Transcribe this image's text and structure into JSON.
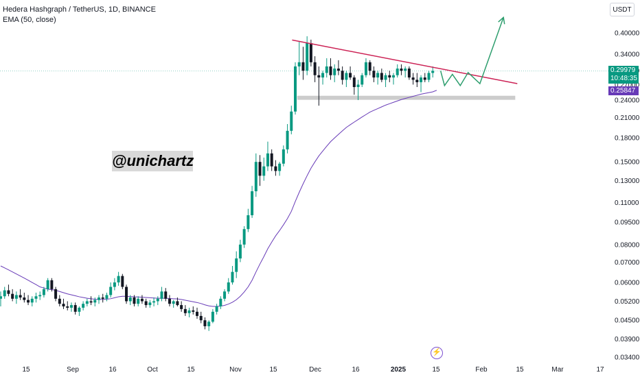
{
  "header": {
    "symbol_line": "Hedera Hashgraph / TetherUS, 1D, BINANCE",
    "indicator_line": "EMA (50, close)"
  },
  "currency": "USDT",
  "watermark": "@unichartz",
  "price_tag": {
    "price": "0.29979",
    "countdown": "10:48:35"
  },
  "ema_tag": "0.25847",
  "colors": {
    "up": "#089981",
    "down": "#131722",
    "ema": "#673ab7",
    "trendline": "#cc2255",
    "arrow": "#2e9e6e",
    "support_zone": "#cccccc"
  },
  "chart_data": {
    "type": "candlestick",
    "scale": "log",
    "y_ticks": [
      "0.40000",
      "0.34000",
      "0.30000",
      "0.27000",
      "0.24000",
      "0.21000",
      "0.18000",
      "0.15000",
      "0.13000",
      "0.11000",
      "0.09500",
      "0.08000",
      "0.07000",
      "0.06000",
      "0.05200",
      "0.04500",
      "0.03900",
      "0.03400"
    ],
    "x_ticks": [
      "15",
      "Sep",
      "16",
      "Oct",
      "15",
      "Nov",
      "15",
      "Dec",
      "16",
      "2025",
      "15",
      "Feb",
      "15",
      "Mar",
      "17"
    ],
    "x_tick_bold": "2025",
    "ylim": [
      0.034,
      0.4
    ],
    "current_price": 0.29979,
    "ema_value": 0.25847,
    "candles": [
      [
        0.053,
        0.056,
        0.05,
        0.054
      ],
      [
        0.054,
        0.058,
        0.053,
        0.0565
      ],
      [
        0.0565,
        0.059,
        0.054,
        0.055
      ],
      [
        0.055,
        0.057,
        0.052,
        0.053
      ],
      [
        0.053,
        0.056,
        0.051,
        0.0545
      ],
      [
        0.0545,
        0.057,
        0.0525,
        0.0535
      ],
      [
        0.0535,
        0.0555,
        0.0515,
        0.0525
      ],
      [
        0.0525,
        0.0545,
        0.0505,
        0.0515
      ],
      [
        0.0515,
        0.054,
        0.05,
        0.053
      ],
      [
        0.053,
        0.0555,
        0.0515,
        0.054
      ],
      [
        0.054,
        0.056,
        0.0525,
        0.0545
      ],
      [
        0.0545,
        0.058,
        0.0535,
        0.057
      ],
      [
        0.057,
        0.062,
        0.056,
        0.061
      ],
      [
        0.061,
        0.062,
        0.056,
        0.057
      ],
      [
        0.057,
        0.058,
        0.052,
        0.053
      ],
      [
        0.053,
        0.0545,
        0.05,
        0.051
      ],
      [
        0.051,
        0.053,
        0.049,
        0.05
      ],
      [
        0.05,
        0.052,
        0.0485,
        0.0495
      ],
      [
        0.0495,
        0.0515,
        0.048,
        0.0505
      ],
      [
        0.0505,
        0.0515,
        0.047,
        0.048
      ],
      [
        0.048,
        0.05,
        0.0465,
        0.0495
      ],
      [
        0.0495,
        0.052,
        0.0485,
        0.051
      ],
      [
        0.051,
        0.053,
        0.05,
        0.052
      ],
      [
        0.052,
        0.054,
        0.0505,
        0.0515
      ],
      [
        0.0515,
        0.0535,
        0.05,
        0.0525
      ],
      [
        0.0525,
        0.0545,
        0.051,
        0.0535
      ],
      [
        0.0535,
        0.055,
        0.0515,
        0.053
      ],
      [
        0.053,
        0.0555,
        0.052,
        0.0545
      ],
      [
        0.0545,
        0.06,
        0.0535,
        0.058
      ],
      [
        0.058,
        0.062,
        0.0565,
        0.06
      ],
      [
        0.06,
        0.065,
        0.0585,
        0.063
      ],
      [
        0.063,
        0.064,
        0.057,
        0.058
      ],
      [
        0.058,
        0.059,
        0.051,
        0.052
      ],
      [
        0.052,
        0.0545,
        0.0505,
        0.0535
      ],
      [
        0.0535,
        0.0545,
        0.05,
        0.051
      ],
      [
        0.051,
        0.054,
        0.05,
        0.053
      ],
      [
        0.053,
        0.0545,
        0.051,
        0.052
      ],
      [
        0.052,
        0.053,
        0.0495,
        0.0505
      ],
      [
        0.0505,
        0.0525,
        0.0495,
        0.0515
      ],
      [
        0.0515,
        0.0535,
        0.05,
        0.052
      ],
      [
        0.052,
        0.054,
        0.0505,
        0.053
      ],
      [
        0.053,
        0.058,
        0.052,
        0.056
      ],
      [
        0.056,
        0.0575,
        0.052,
        0.053
      ],
      [
        0.053,
        0.0545,
        0.05,
        0.051
      ],
      [
        0.051,
        0.0525,
        0.0495,
        0.052
      ],
      [
        0.052,
        0.0535,
        0.05,
        0.0505
      ],
      [
        0.0505,
        0.052,
        0.048,
        0.049
      ],
      [
        0.049,
        0.0505,
        0.0465,
        0.0475
      ],
      [
        0.0475,
        0.0495,
        0.046,
        0.0485
      ],
      [
        0.0485,
        0.05,
        0.047,
        0.048
      ],
      [
        0.048,
        0.0495,
        0.0455,
        0.0465
      ],
      [
        0.0465,
        0.048,
        0.044,
        0.045
      ],
      [
        0.045,
        0.046,
        0.042,
        0.043
      ],
      [
        0.043,
        0.045,
        0.0415,
        0.0445
      ],
      [
        0.0445,
        0.049,
        0.044,
        0.048
      ],
      [
        0.048,
        0.051,
        0.047,
        0.05
      ],
      [
        0.05,
        0.054,
        0.049,
        0.053
      ],
      [
        0.053,
        0.057,
        0.052,
        0.056
      ],
      [
        0.056,
        0.062,
        0.055,
        0.06
      ],
      [
        0.06,
        0.068,
        0.059,
        0.065
      ],
      [
        0.065,
        0.076,
        0.062,
        0.072
      ],
      [
        0.072,
        0.083,
        0.07,
        0.08
      ],
      [
        0.08,
        0.092,
        0.078,
        0.09
      ],
      [
        0.09,
        0.105,
        0.088,
        0.1
      ],
      [
        0.1,
        0.125,
        0.098,
        0.12
      ],
      [
        0.12,
        0.16,
        0.115,
        0.15
      ],
      [
        0.15,
        0.158,
        0.125,
        0.135
      ],
      [
        0.135,
        0.155,
        0.13,
        0.145
      ],
      [
        0.145,
        0.175,
        0.14,
        0.16
      ],
      [
        0.16,
        0.165,
        0.14,
        0.145
      ],
      [
        0.145,
        0.152,
        0.135,
        0.14
      ],
      [
        0.14,
        0.15,
        0.135,
        0.148
      ],
      [
        0.148,
        0.17,
        0.145,
        0.165
      ],
      [
        0.165,
        0.2,
        0.16,
        0.19
      ],
      [
        0.19,
        0.23,
        0.185,
        0.22
      ],
      [
        0.22,
        0.32,
        0.215,
        0.31
      ],
      [
        0.31,
        0.375,
        0.29,
        0.32
      ],
      [
        0.32,
        0.36,
        0.28,
        0.3
      ],
      [
        0.3,
        0.39,
        0.29,
        0.37
      ],
      [
        0.37,
        0.38,
        0.31,
        0.32
      ],
      [
        0.32,
        0.335,
        0.275,
        0.29
      ],
      [
        0.29,
        0.31,
        0.23,
        0.285
      ],
      [
        0.285,
        0.3,
        0.27,
        0.295
      ],
      [
        0.295,
        0.33,
        0.285,
        0.31
      ],
      [
        0.31,
        0.33,
        0.28,
        0.29
      ],
      [
        0.29,
        0.315,
        0.275,
        0.305
      ],
      [
        0.305,
        0.325,
        0.29,
        0.3
      ],
      [
        0.3,
        0.31,
        0.27,
        0.28
      ],
      [
        0.28,
        0.3,
        0.265,
        0.295
      ],
      [
        0.295,
        0.31,
        0.28,
        0.285
      ],
      [
        0.285,
        0.29,
        0.25,
        0.265
      ],
      [
        0.265,
        0.28,
        0.24,
        0.27
      ],
      [
        0.27,
        0.295,
        0.265,
        0.29
      ],
      [
        0.29,
        0.33,
        0.285,
        0.32
      ],
      [
        0.32,
        0.325,
        0.29,
        0.3
      ],
      [
        0.3,
        0.31,
        0.275,
        0.285
      ],
      [
        0.285,
        0.3,
        0.27,
        0.295
      ],
      [
        0.295,
        0.305,
        0.275,
        0.28
      ],
      [
        0.28,
        0.295,
        0.265,
        0.29
      ],
      [
        0.29,
        0.3,
        0.275,
        0.285
      ],
      [
        0.285,
        0.295,
        0.27,
        0.29
      ],
      [
        0.29,
        0.315,
        0.285,
        0.305
      ],
      [
        0.305,
        0.315,
        0.29,
        0.3
      ],
      [
        0.3,
        0.31,
        0.285,
        0.305
      ],
      [
        0.305,
        0.31,
        0.28,
        0.285
      ],
      [
        0.285,
        0.295,
        0.27,
        0.28
      ],
      [
        0.28,
        0.295,
        0.265,
        0.275
      ],
      [
        0.275,
        0.29,
        0.255,
        0.285
      ],
      [
        0.285,
        0.295,
        0.275,
        0.28
      ],
      [
        0.28,
        0.3,
        0.275,
        0.295
      ],
      [
        0.295,
        0.31,
        0.285,
        0.2998
      ]
    ],
    "ema": [
      0.068,
      0.067,
      0.066,
      0.065,
      0.064,
      0.063,
      0.062,
      0.061,
      0.06,
      0.059,
      0.058,
      0.0575,
      0.057,
      0.0568,
      0.0565,
      0.056,
      0.0555,
      0.055,
      0.0546,
      0.0542,
      0.0538,
      0.0535,
      0.0532,
      0.053,
      0.0528,
      0.0527,
      0.0527,
      0.0528,
      0.053,
      0.0534,
      0.0538,
      0.054,
      0.054,
      0.0539,
      0.0538,
      0.0537,
      0.0536,
      0.0535,
      0.0534,
      0.0533,
      0.0532,
      0.0532,
      0.0532,
      0.0531,
      0.053,
      0.0529,
      0.0527,
      0.0524,
      0.0521,
      0.0518,
      0.0515,
      0.0511,
      0.0506,
      0.0502,
      0.05,
      0.05,
      0.0501,
      0.0504,
      0.0509,
      0.0516,
      0.0526,
      0.054,
      0.0558,
      0.058,
      0.061,
      0.065,
      0.069,
      0.073,
      0.0775,
      0.0815,
      0.0855,
      0.089,
      0.093,
      0.0975,
      0.103,
      0.111,
      0.119,
      0.127,
      0.135,
      0.143,
      0.15,
      0.157,
      0.163,
      0.169,
      0.175,
      0.18,
      0.185,
      0.19,
      0.195,
      0.199,
      0.203,
      0.207,
      0.211,
      0.215,
      0.219,
      0.222,
      0.225,
      0.228,
      0.231,
      0.2335,
      0.236,
      0.2385,
      0.241,
      0.243,
      0.245,
      0.247,
      0.249,
      0.251,
      0.2525,
      0.254,
      0.2555,
      0.2585
    ],
    "trendline": {
      "from": [
        77,
        0.375
      ],
      "to": [
        131,
        0.272
      ]
    },
    "support_zone": {
      "from_index": 76,
      "to_index": 131,
      "low": 0.2405,
      "high": 0.248
    },
    "projection": [
      [
        112,
        0.2998
      ],
      [
        113,
        0.268
      ],
      [
        115,
        0.292
      ],
      [
        117,
        0.268
      ],
      [
        119,
        0.296
      ],
      [
        122,
        0.272
      ],
      [
        128,
        0.45
      ]
    ]
  }
}
